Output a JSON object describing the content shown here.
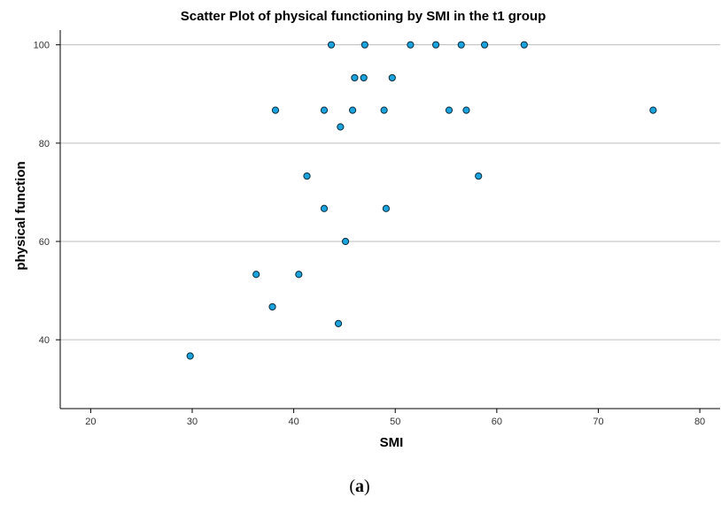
{
  "chart_data": {
    "type": "scatter",
    "title": "Scatter Plot of physical functioning by SMI in the t1 group",
    "xlabel": "SMI",
    "ylabel": "physical function",
    "xlim": [
      17,
      82
    ],
    "ylim": [
      26,
      103
    ],
    "xticks": [
      20,
      30,
      40,
      50,
      60,
      70,
      80
    ],
    "yticks": [
      40,
      60,
      80,
      100
    ],
    "grid": "horizontal",
    "legend": "none",
    "point_color": "#1aa3dc",
    "points": [
      {
        "x": 29.8,
        "y": 36.7
      },
      {
        "x": 36.3,
        "y": 53.3
      },
      {
        "x": 37.9,
        "y": 46.7
      },
      {
        "x": 38.2,
        "y": 86.7
      },
      {
        "x": 40.5,
        "y": 53.3
      },
      {
        "x": 41.3,
        "y": 73.3
      },
      {
        "x": 43.0,
        "y": 66.7
      },
      {
        "x": 43.0,
        "y": 86.7
      },
      {
        "x": 43.7,
        "y": 100
      },
      {
        "x": 44.4,
        "y": 43.3
      },
      {
        "x": 44.6,
        "y": 83.3
      },
      {
        "x": 45.1,
        "y": 60.0
      },
      {
        "x": 45.8,
        "y": 86.7
      },
      {
        "x": 46.0,
        "y": 93.3
      },
      {
        "x": 46.9,
        "y": 93.3
      },
      {
        "x": 47.0,
        "y": 100
      },
      {
        "x": 48.9,
        "y": 86.7
      },
      {
        "x": 49.1,
        "y": 66.7
      },
      {
        "x": 49.7,
        "y": 93.3
      },
      {
        "x": 51.5,
        "y": 100
      },
      {
        "x": 54.0,
        "y": 100
      },
      {
        "x": 55.3,
        "y": 86.7
      },
      {
        "x": 56.5,
        "y": 100
      },
      {
        "x": 57.0,
        "y": 86.7
      },
      {
        "x": 58.2,
        "y": 73.3
      },
      {
        "x": 58.8,
        "y": 100
      },
      {
        "x": 62.7,
        "y": 100
      },
      {
        "x": 75.4,
        "y": 86.7
      }
    ]
  },
  "caption": {
    "open": "(",
    "letter": "a",
    "close": ")"
  }
}
